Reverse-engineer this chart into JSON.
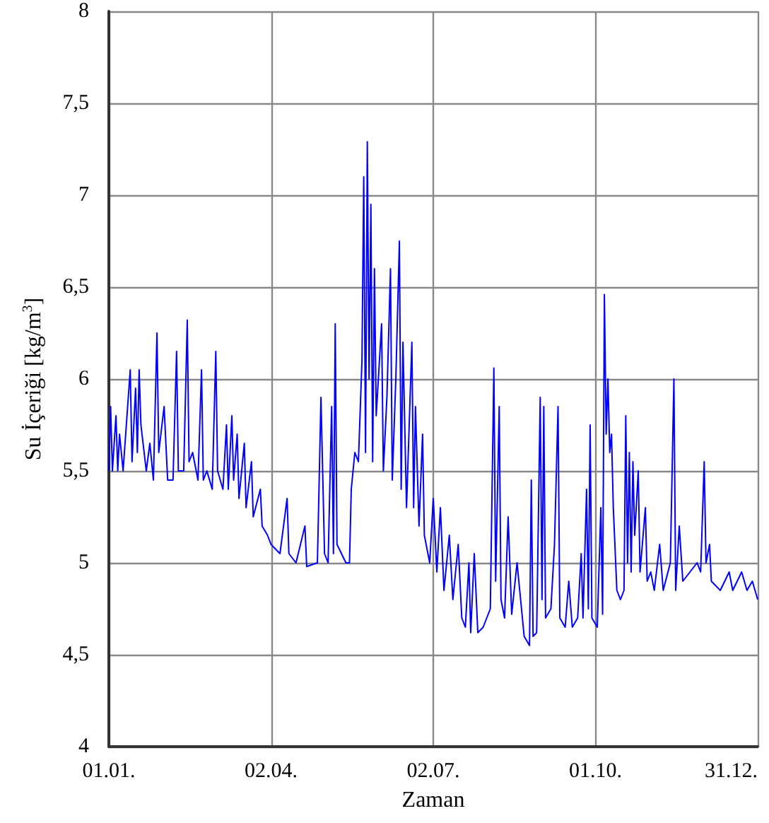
{
  "chart_data": {
    "type": "line",
    "xlabel": "Zaman",
    "ylabel": "Su İçeriği [kg/m$^{3}$]",
    "xlim": [
      "--01-01",
      "--12-31"
    ],
    "ylim": [
      4,
      8
    ],
    "xticks": [
      {
        "value": "--01-01",
        "label": "01.01."
      },
      {
        "value": "--04-02",
        "label": "02.04."
      },
      {
        "value": "--07-02",
        "label": "02.07."
      },
      {
        "value": "--10-01",
        "label": "01.10."
      },
      {
        "value": "--12-31",
        "label": "31.12."
      }
    ],
    "yticks": [
      4,
      {
        "value": 4.5,
        "label": "4,5"
      },
      5,
      {
        "value": 5.5,
        "label": "5,5"
      },
      6,
      {
        "value": 6.5,
        "label": "6,5"
      },
      7,
      {
        "value": 7.5,
        "label": "7,5"
      },
      8
    ],
    "grid": true,
    "marker": "none",
    "line_style": "solid",
    "series": [
      {
        "color": "#0000ff",
        "x": [
          "--01-01",
          "--01-02",
          "--01-03",
          "--01-05",
          "--01-06",
          "--01-07",
          "--01-09",
          "--01-13",
          "--01-14",
          "--01-16",
          "--01-17",
          "--01-18",
          "--01-19",
          "--01-22",
          "--01-24",
          "--01-26",
          "--01-28",
          "--01-29",
          "--02-01",
          "--02-03",
          "--02-06",
          "--02-08",
          "--02-09",
          "--02-12",
          "--02-14",
          "--02-15",
          "--02-17",
          "--02-20",
          "--02-22",
          "--02-23",
          "--02-25",
          "--02-28",
          "--03-02",
          "--03-03",
          "--03-06",
          "--03-08",
          "--03-09",
          "--03-11",
          "--03-12",
          "--03-14",
          "--03-15",
          "--03-18",
          "--03-19",
          "--03-22",
          "--03-23",
          "--03-27",
          "--03-28",
          "--03-31",
          "--04-02",
          "--04-07",
          "--04-11",
          "--04-12",
          "--04-16",
          "--04-21",
          "--04-22",
          "--04-28",
          "--04-30",
          "--05-02",
          "--05-04",
          "--05-06",
          "--05-07",
          "--05-08",
          "--05-09",
          "--05-14",
          "--05-16",
          "--05-17",
          "--05-19",
          "--05-21",
          "--05-23",
          "--05-24",
          "--05-25",
          "--05-26",
          "--05-27",
          "--05-28",
          "--05-29",
          "--05-30",
          "--05-31",
          "--06-03",
          "--06-04",
          "--06-06",
          "--06-08",
          "--06-09",
          "--06-11",
          "--06-13",
          "--06-14",
          "--06-15",
          "--06-17",
          "--06-20",
          "--06-21",
          "--06-22",
          "--06-24",
          "--06-26",
          "--06-27",
          "--06-30",
          "--07-02",
          "--07-04",
          "--07-06",
          "--07-08",
          "--07-11",
          "--07-13",
          "--07-16",
          "--07-18",
          "--07-20",
          "--07-22",
          "--07-23",
          "--07-25",
          "--07-27",
          "--07-30",
          "--08-03",
          "--08-05",
          "--08-06",
          "--08-08",
          "--08-09",
          "--08-11",
          "--08-13",
          "--08-15",
          "--08-18",
          "--08-22",
          "--08-25",
          "--08-26",
          "--08-27",
          "--08-29",
          "--08-31",
          "--09-01",
          "--09-02",
          "--09-03",
          "--09-06",
          "--09-08",
          "--09-10",
          "--09-11",
          "--09-14",
          "--09-16",
          "--09-18",
          "--09-21",
          "--09-23",
          "--09-24",
          "--09-26",
          "--09-27",
          "--09-28",
          "--09-29",
          "--10-02",
          "--10-04",
          "--10-05",
          "--10-06",
          "--10-07",
          "--10-08",
          "--10-09",
          "--10-10",
          "--10-11",
          "--10-13",
          "--10-15",
          "--10-17",
          "--10-18",
          "--10-19",
          "--10-20",
          "--10-21",
          "--10-22",
          "--10-23",
          "--10-25",
          "--10-26",
          "--10-29",
          "--10-30",
          "--11-01",
          "--11-03",
          "--11-06",
          "--11-08",
          "--11-12",
          "--11-14",
          "--11-15",
          "--11-17",
          "--11-19",
          "--11-23",
          "--11-27",
          "--11-29",
          "--12-01",
          "--12-02",
          "--12-04",
          "--12-05",
          "--12-10",
          "--12-15",
          "--12-17",
          "--12-22",
          "--12-25",
          "--12-28",
          "--12-31"
        ],
        "values": [
          5.5,
          5.85,
          5.5,
          5.8,
          5.5,
          5.7,
          5.5,
          6.05,
          5.55,
          5.95,
          5.6,
          6.05,
          5.75,
          5.5,
          5.65,
          5.45,
          6.25,
          5.6,
          5.85,
          5.45,
          5.45,
          6.15,
          5.5,
          5.5,
          6.32,
          5.55,
          5.6,
          5.45,
          6.05,
          5.45,
          5.5,
          5.4,
          6.15,
          5.5,
          5.4,
          5.75,
          5.4,
          5.8,
          5.45,
          5.7,
          5.35,
          5.65,
          5.3,
          5.55,
          5.25,
          5.4,
          5.2,
          5.15,
          5.1,
          5.05,
          5.35,
          5.05,
          5.0,
          5.2,
          4.98,
          5.0,
          5.9,
          5.05,
          5.0,
          5.85,
          5.05,
          6.3,
          5.1,
          5.0,
          5.0,
          5.4,
          5.6,
          5.55,
          6.1,
          7.1,
          5.6,
          7.29,
          6.0,
          6.95,
          5.55,
          6.6,
          5.8,
          6.3,
          5.5,
          5.9,
          6.6,
          5.45,
          6.0,
          6.75,
          5.4,
          6.2,
          5.3,
          6.2,
          5.3,
          5.85,
          5.2,
          5.7,
          5.15,
          5.0,
          5.35,
          4.95,
          5.3,
          4.85,
          5.15,
          4.8,
          5.1,
          4.7,
          4.65,
          5.0,
          4.62,
          5.05,
          4.62,
          4.65,
          4.75,
          6.06,
          4.9,
          5.85,
          4.8,
          4.7,
          5.25,
          4.72,
          5.0,
          4.6,
          4.55,
          5.45,
          4.6,
          4.62,
          5.9,
          4.8,
          5.85,
          4.7,
          4.75,
          5.1,
          5.85,
          4.7,
          4.65,
          4.9,
          4.65,
          4.7,
          5.05,
          4.7,
          5.4,
          4.75,
          5.75,
          4.7,
          4.65,
          5.3,
          4.72,
          6.46,
          5.7,
          6.0,
          5.6,
          5.7,
          5.3,
          4.85,
          4.8,
          4.85,
          5.8,
          5.0,
          5.6,
          4.95,
          5.55,
          5.15,
          5.5,
          4.95,
          5.3,
          4.9,
          4.95,
          4.85,
          5.1,
          4.85,
          5.0,
          6.0,
          4.85,
          5.2,
          4.9,
          4.95,
          5.0,
          4.95,
          5.55,
          5.0,
          5.1,
          4.9,
          4.85,
          4.95,
          4.85,
          4.95,
          4.85,
          4.9,
          4.8
        ]
      }
    ]
  }
}
